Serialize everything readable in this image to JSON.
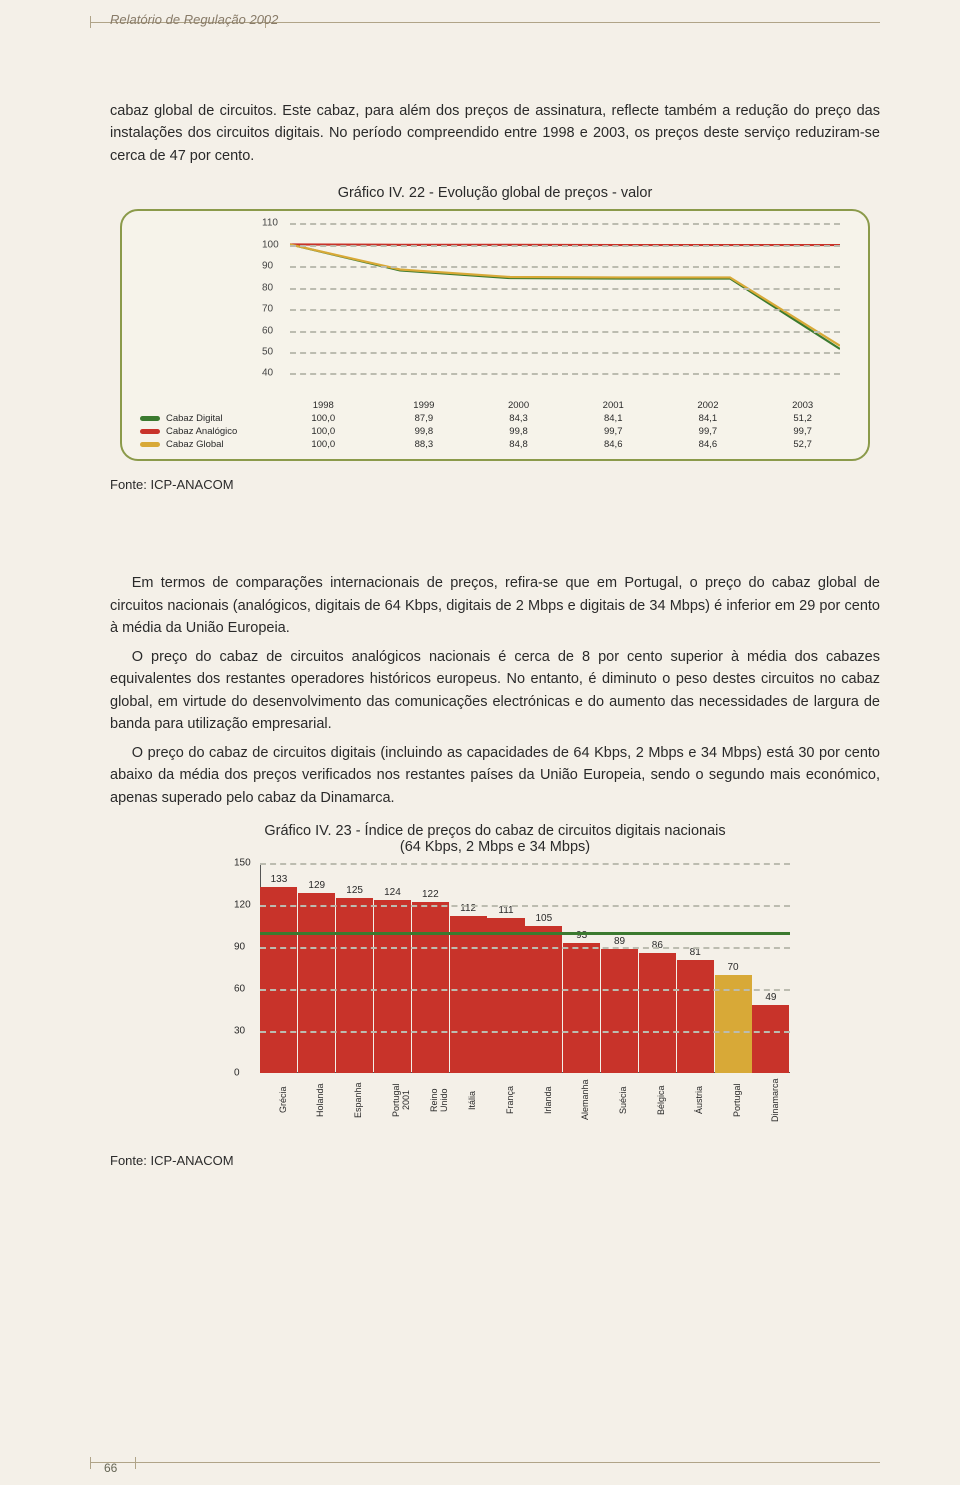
{
  "running_head": "Relatório de Regulação 2002",
  "page_number": "66",
  "intro_paragraph": "cabaz global de circuitos. Este cabaz, para além dos preços de assinatura, reflecte também a redução do preço das instalações dos circuitos digitais. No período compreendido entre 1998 e 2003, os preços deste serviço reduziram-se cerca de 47 por cento.",
  "chart1": {
    "title": "Gráfico IV. 22 - Evolução global de preços - valor",
    "type": "line",
    "ylim": [
      40,
      110
    ],
    "ytick_step": 10,
    "yticks": [
      "110",
      "100",
      "90",
      "80",
      "70",
      "60",
      "50",
      "40"
    ],
    "years": [
      "1998",
      "1999",
      "2000",
      "2001",
      "2002",
      "2003"
    ],
    "series": [
      {
        "name": "Cabaz Digital",
        "color": "#3b7a2f",
        "values": [
          "100,0",
          "87,9",
          "84,3",
          "84,1",
          "84,1",
          "51,2"
        ],
        "num": [
          100.0,
          87.9,
          84.3,
          84.1,
          84.1,
          51.2
        ]
      },
      {
        "name": "Cabaz Analógico",
        "color": "#c8332a",
        "values": [
          "100,0",
          "99,8",
          "99,8",
          "99,7",
          "99,7",
          "99,7"
        ],
        "num": [
          100.0,
          99.8,
          99.8,
          99.7,
          99.7,
          99.7
        ]
      },
      {
        "name": "Cabaz Global",
        "color": "#d8a937",
        "values": [
          "100,0",
          "88,3",
          "84,8",
          "84,6",
          "84,6",
          "52,7"
        ],
        "num": [
          100.0,
          88.3,
          84.8,
          84.6,
          84.6,
          52.7
        ]
      }
    ],
    "background": "#f6f3ea",
    "border_color": "#8b9a4a",
    "grid_color": "#bcbcb0"
  },
  "source_label": "Fonte: ICP-ANACOM",
  "paragraphs": [
    "Em termos de comparações internacionais de preços, refira-se que em Portugal, o preço do cabaz global de circuitos nacionais (analógicos, digitais de 64 Kbps, digitais de 2 Mbps e digitais de 34 Mbps) é inferior em 29 por cento à média da União Europeia.",
    "O preço do cabaz de circuitos analógicos nacionais é cerca de 8 por cento superior à média dos cabazes equivalentes dos restantes operadores históricos europeus. No entanto, é diminuto o peso destes circuitos no cabaz global, em virtude do desenvolvimento das comunicações electrónicas e do aumento das necessidades de largura de banda para utilização empresarial.",
    "O preço do cabaz de circuitos digitais (incluindo as capacidades de 64 Kbps, 2 Mbps e 34 Mbps) está 30 por cento abaixo da média dos preços verificados nos restantes países da União Europeia, sendo o segundo mais económico, apenas superado pelo cabaz da Dinamarca."
  ],
  "chart2": {
    "title": "Gráfico IV. 23 - Índice de preços do cabaz de circuitos digitais nacionais",
    "subtitle": "(64 Kbps, 2 Mbps e 34 Mbps)",
    "type": "bar",
    "ylim": [
      0,
      150
    ],
    "ytick_step": 30,
    "yticks": [
      "150",
      "120",
      "90",
      "60",
      "30",
      "0"
    ],
    "ref_value": 100,
    "ref_color": "#3b7a2f",
    "default_color": "#c8332a",
    "highlight_color": "#d8a937",
    "grid_color": "#bcbcb0",
    "bars": [
      {
        "label": "Grécia",
        "value": 133
      },
      {
        "label": "Holanda",
        "value": 129
      },
      {
        "label": "Espanha",
        "value": 125
      },
      {
        "label": "Portugal 2001",
        "value": 124
      },
      {
        "label": "Reino Unido",
        "value": 122
      },
      {
        "label": "Itália",
        "value": 112
      },
      {
        "label": "França",
        "value": 111
      },
      {
        "label": "Irlanda",
        "value": 105
      },
      {
        "label": "Alemanha",
        "value": 93
      },
      {
        "label": "Suécia",
        "value": 89
      },
      {
        "label": "Bélgica",
        "value": 86
      },
      {
        "label": "Áustria",
        "value": 81
      },
      {
        "label": "Portugal",
        "value": 70,
        "highlight": true
      },
      {
        "label": "Dinamarca",
        "value": 49
      }
    ]
  }
}
